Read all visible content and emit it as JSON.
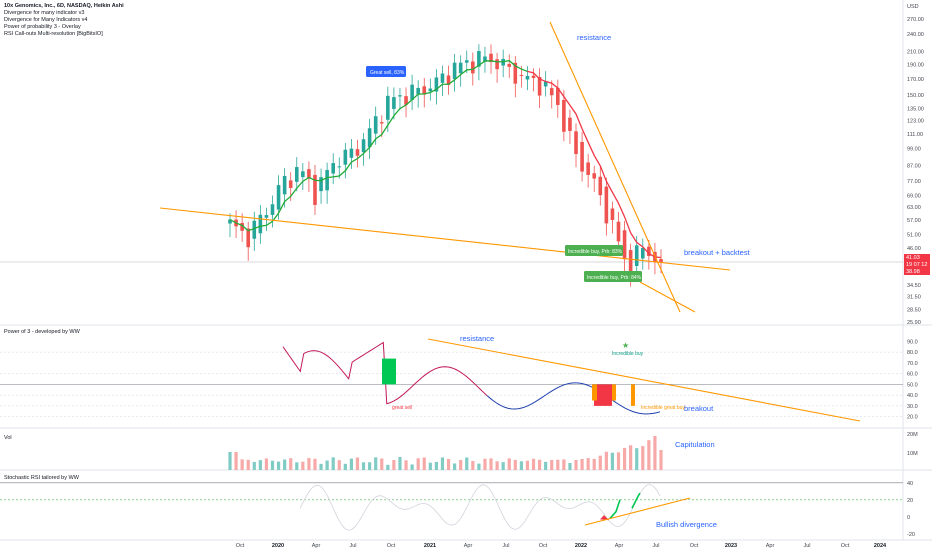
{
  "header": {
    "title": "10x Genomics, Inc., 6D, NASDAQ, Heikin Ashi",
    "indicators": [
      "Divergence for many indicator v3",
      "Divergence for Many Indicators v4",
      "Power of probability 3 - Overlay",
      "RSI Call-outs Multi-resolution [BigBitsIO]"
    ]
  },
  "price_axis": {
    "currency": "USD",
    "ticks": [
      "270.00",
      "240.00",
      "210.00",
      "190.00",
      "170.00",
      "150.00",
      "135.00",
      "123.00",
      "111.00",
      "99.00",
      "87.00",
      "77.00",
      "69.00",
      "63.00",
      "57.00",
      "51.00",
      "46.00",
      "41.00",
      "38.00",
      "34.50",
      "31.50",
      "28.50",
      "25.90"
    ],
    "tags": [
      {
        "label": "41.03",
        "color": "#f23645"
      },
      {
        "label": "19 07 12",
        "color": "#f23645"
      },
      {
        "label": "38.98",
        "color": "#f23645"
      }
    ]
  },
  "date_axis": {
    "ticks": [
      {
        "label": "Oct",
        "bold": false
      },
      {
        "label": "2020",
        "bold": true
      },
      {
        "label": "Apr",
        "bold": false
      },
      {
        "label": "Jul",
        "bold": false
      },
      {
        "label": "Oct",
        "bold": false
      },
      {
        "label": "2021",
        "bold": true
      },
      {
        "label": "Apr",
        "bold": false
      },
      {
        "label": "Jul",
        "bold": false
      },
      {
        "label": "Oct",
        "bold": false
      },
      {
        "label": "2022",
        "bold": true
      },
      {
        "label": "Apr",
        "bold": false
      },
      {
        "label": "Jul",
        "bold": false
      },
      {
        "label": "Oct",
        "bold": false
      },
      {
        "label": "2023",
        "bold": true
      },
      {
        "label": "Apr",
        "bold": false
      },
      {
        "label": "Jul",
        "bold": false
      },
      {
        "label": "Oct",
        "bold": false
      },
      {
        "label": "2024",
        "bold": true
      }
    ]
  },
  "annotations": {
    "resistance_top": "resistance",
    "breakout_backtest": "breakout + backtest",
    "callout_great_sell": "Great sell, 83%",
    "callout_incredible_buy_1": "Incredible buy, Prb: 83%",
    "callout_incredible_buy_2": "Incredible buy, Prb: 84%",
    "resistance_power": "resistance",
    "breakout_power": "breakout",
    "capitulation": "Capitulation",
    "bullish_divergence": "Bullish divergence",
    "great_sell": "great sell",
    "incredible_buy": "Incredible buy",
    "incredible_great_buy": "Incredible great buy"
  },
  "panes": {
    "power": {
      "label": "Power of 3 - developed by WW",
      "ticks": [
        "90.0",
        "80.0",
        "70.0",
        "60.0",
        "50.0",
        "40.0",
        "30.0",
        "20.0"
      ]
    },
    "vol": {
      "label": "Vol",
      "ticks": [
        "20M",
        "10M"
      ]
    },
    "stoch": {
      "label": "Stochastic RSI tailored by WW",
      "ticks": [
        "40",
        "20",
        "0",
        "-20"
      ]
    }
  },
  "colors": {
    "up": "#26a69a",
    "down": "#ef5350",
    "trendline": "#ff9800",
    "ma_green": "#22ab37",
    "ma_red": "#f23645",
    "annotation_blue": "#2962ff",
    "power_line_red": "#c2185b",
    "power_line_blue": "#1e40af"
  },
  "chart_data": {
    "type": "candlestick",
    "title": "10x Genomics, Inc., 6D, NASDAQ, Heikin Ashi",
    "xlabel": "",
    "ylabel": "",
    "log_scale": true,
    "ylim": [
      25.9,
      270.0
    ],
    "x_range": [
      "2019-09",
      "2024-01"
    ],
    "approx_close": {
      "x": [
        "2019-09-01",
        "2019-10-15",
        "2019-12-01",
        "2020-01-15",
        "2020-03-01",
        "2020-04-15",
        "2020-06-01",
        "2020-07-15",
        "2020-09-01",
        "2020-10-15",
        "2020-12-01",
        "2021-01-15",
        "2021-03-01",
        "2021-04-15",
        "2021-06-01",
        "2021-07-15",
        "2021-09-01",
        "2021-10-15",
        "2021-12-01",
        "2022-01-15",
        "2022-02-15",
        "2022-03-15",
        "2022-04-15",
        "2022-05-15",
        "2022-06-15",
        "2022-07-10"
      ],
      "y": [
        55,
        50,
        60,
        75,
        85,
        70,
        90,
        95,
        110,
        140,
        150,
        155,
        165,
        185,
        195,
        200,
        185,
        170,
        165,
        140,
        95,
        78,
        58,
        40,
        46,
        41
      ]
    },
    "last_price": 41.03,
    "support_trendline": {
      "from": [
        "2019-08-01",
        62
      ],
      "to": [
        "2022-10-01",
        38
      ]
    },
    "resistance_trendline": {
      "from": [
        "2021-11-01",
        270
      ],
      "to": [
        "2022-10-01",
        27
      ]
    },
    "power_of_3": {
      "ylim": [
        15,
        95
      ],
      "levels": [
        50
      ]
    },
    "volume": {
      "units": "shares",
      "max_label": "20M"
    },
    "stochastic_rsi": {
      "ylim": [
        -25,
        48
      ],
      "levels": [
        40,
        20
      ]
    }
  }
}
